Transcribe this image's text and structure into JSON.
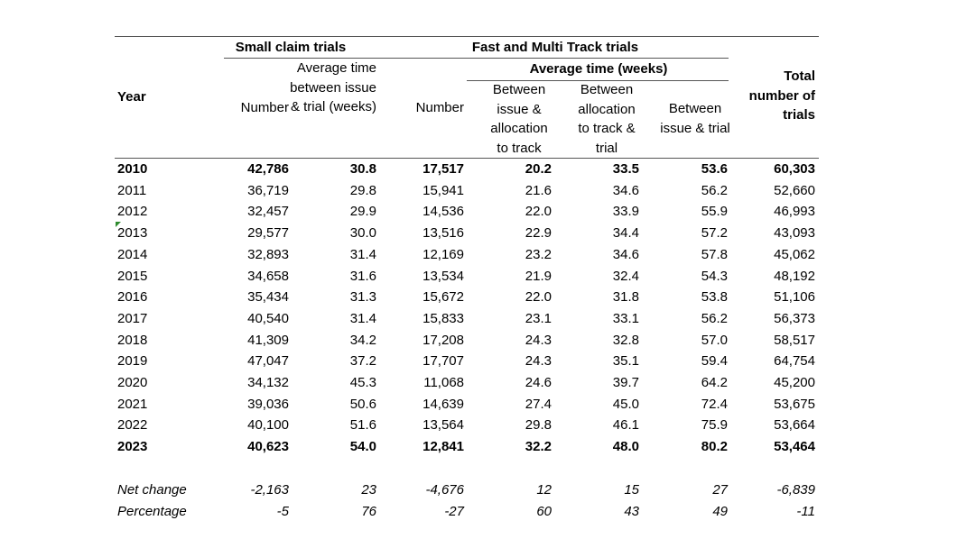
{
  "table": {
    "group_headers": {
      "small_claim": "Small claim trials",
      "fast_multi": "Fast and Multi Track trials",
      "fast_multi_avg": "Average time (weeks)"
    },
    "columns": [
      "Year",
      "Number",
      "Average time between issue & trial (weeks)",
      "Number",
      "Between issue & allocation to track",
      "Between allocation to track & trial",
      "Between issue & trial",
      "Total number of trials"
    ],
    "rows": [
      [
        "2010",
        "42,786",
        "30.8",
        "17,517",
        "20.2",
        "33.5",
        "53.6",
        "60,303"
      ],
      [
        "2011",
        "36,719",
        "29.8",
        "15,941",
        "21.6",
        "34.6",
        "56.2",
        "52,660"
      ],
      [
        "2012",
        "32,457",
        "29.9",
        "14,536",
        "22.0",
        "33.9",
        "55.9",
        "46,993"
      ],
      [
        "2013",
        "29,577",
        "30.0",
        "13,516",
        "22.9",
        "34.4",
        "57.2",
        "43,093"
      ],
      [
        "2014",
        "32,893",
        "31.4",
        "12,169",
        "23.2",
        "34.6",
        "57.8",
        "45,062"
      ],
      [
        "2015",
        "34,658",
        "31.6",
        "13,534",
        "21.9",
        "32.4",
        "54.3",
        "48,192"
      ],
      [
        "2016",
        "35,434",
        "31.3",
        "15,672",
        "22.0",
        "31.8",
        "53.8",
        "51,106"
      ],
      [
        "2017",
        "40,540",
        "31.4",
        "15,833",
        "23.1",
        "33.1",
        "56.2",
        "56,373"
      ],
      [
        "2018",
        "41,309",
        "34.2",
        "17,208",
        "24.3",
        "32.8",
        "57.0",
        "58,517"
      ],
      [
        "2019",
        "47,047",
        "37.2",
        "17,707",
        "24.3",
        "35.1",
        "59.4",
        "64,754"
      ],
      [
        "2020",
        "34,132",
        "45.3",
        "11,068",
        "24.6",
        "39.7",
        "64.2",
        "45,200"
      ],
      [
        "2021",
        "39,036",
        "50.6",
        "14,639",
        "27.4",
        "45.0",
        "72.4",
        "53,675"
      ],
      [
        "2022",
        "40,100",
        "51.6",
        "13,564",
        "29.8",
        "46.1",
        "75.9",
        "53,664"
      ],
      [
        "2023",
        "40,623",
        "54.0",
        "12,841",
        "32.2",
        "48.0",
        "80.2",
        "53,464"
      ]
    ],
    "summary_rows": [
      [
        "Net change",
        "-2,163",
        "23",
        "-4,676",
        "12",
        "15",
        "27",
        "-6,839"
      ],
      [
        "Percentage",
        "-5",
        "76",
        "-27",
        "60",
        "43",
        "49",
        "-11"
      ]
    ]
  }
}
